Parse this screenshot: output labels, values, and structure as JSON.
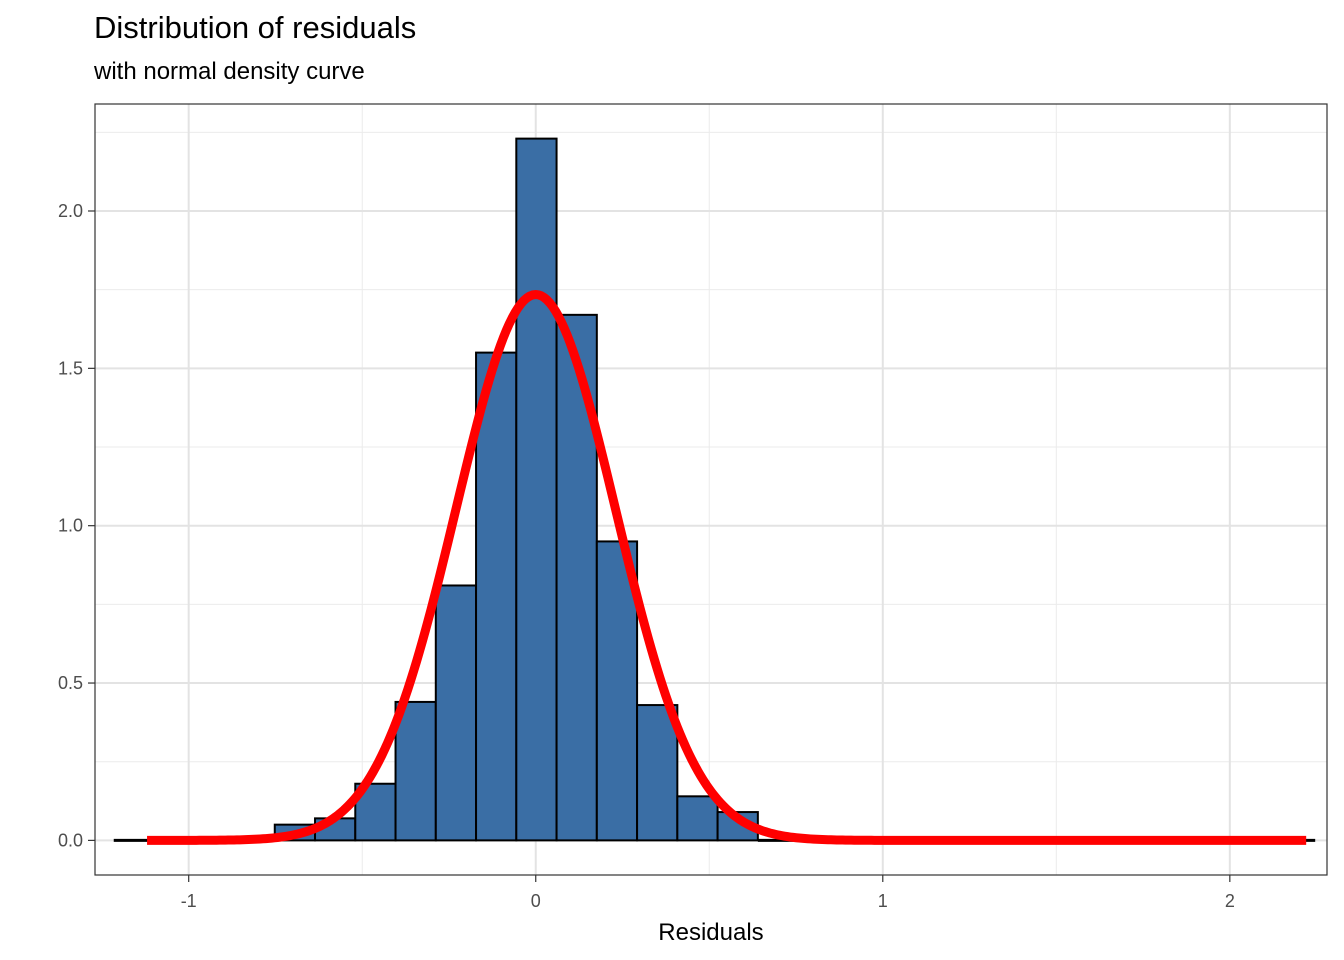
{
  "chart_data": {
    "type": "bar",
    "title": "Distribution of residuals",
    "subtitle": "with normal density curve",
    "xlabel": "Residuals",
    "ylabel": "",
    "xlim": [
      -1.27,
      2.28
    ],
    "ylim": [
      -0.11,
      2.34
    ],
    "x_ticks": [
      -1,
      0,
      1,
      2
    ],
    "x_tick_labels": [
      "-1",
      "0",
      "1",
      "2"
    ],
    "y_ticks": [
      0.0,
      0.5,
      1.0,
      1.5,
      2.0
    ],
    "y_tick_labels": [
      "0.0",
      "0.5",
      "1.0",
      "1.5",
      "2.0"
    ],
    "grid": true,
    "bar_fill": "#3A6EA5",
    "bar_outline": "#000000",
    "curve_color": "#FF0000",
    "histogram": {
      "bins": [
        {
          "x0": -1.216,
          "x1": -1.1,
          "density": 0.0
        },
        {
          "x0": -1.1,
          "x1": -0.984,
          "density": 0.0
        },
        {
          "x0": -0.984,
          "x1": -0.868,
          "density": 0.0
        },
        {
          "x0": -0.868,
          "x1": -0.752,
          "density": 0.0
        },
        {
          "x0": -0.752,
          "x1": -0.636,
          "density": 0.05
        },
        {
          "x0": -0.636,
          "x1": -0.52,
          "density": 0.07
        },
        {
          "x0": -0.52,
          "x1": -0.404,
          "density": 0.18
        },
        {
          "x0": -0.404,
          "x1": -0.288,
          "density": 0.44
        },
        {
          "x0": -0.288,
          "x1": -0.172,
          "density": 0.81
        },
        {
          "x0": -0.172,
          "x1": -0.056,
          "density": 1.55
        },
        {
          "x0": -0.056,
          "x1": 0.06,
          "density": 2.23
        },
        {
          "x0": 0.06,
          "x1": 0.176,
          "density": 1.67
        },
        {
          "x0": 0.176,
          "x1": 0.292,
          "density": 0.95
        },
        {
          "x0": 0.292,
          "x1": 0.408,
          "density": 0.43
        },
        {
          "x0": 0.408,
          "x1": 0.524,
          "density": 0.14
        },
        {
          "x0": 0.524,
          "x1": 0.64,
          "density": 0.09
        },
        {
          "x0": 0.64,
          "x1": 0.756,
          "density": 0.0
        },
        {
          "x0": 0.756,
          "x1": 2.246,
          "density": 0.0
        }
      ]
    },
    "normal_curve": {
      "mean": 0.0,
      "sd": 0.23,
      "x_range": [
        -1.12,
        2.22
      ]
    }
  }
}
